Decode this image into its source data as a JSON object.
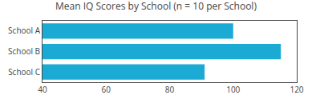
{
  "chart_data": {
    "type": "bar",
    "orientation": "horizontal",
    "title": "Mean IQ Scores by School (n = 10 per School)",
    "categories": [
      "School A",
      "School B",
      "School C"
    ],
    "values": [
      100,
      115,
      91
    ],
    "color": "#1aaad4",
    "xlim": [
      40,
      120
    ],
    "xticks": [
      40,
      60,
      80,
      100,
      120
    ],
    "grid": false
  }
}
